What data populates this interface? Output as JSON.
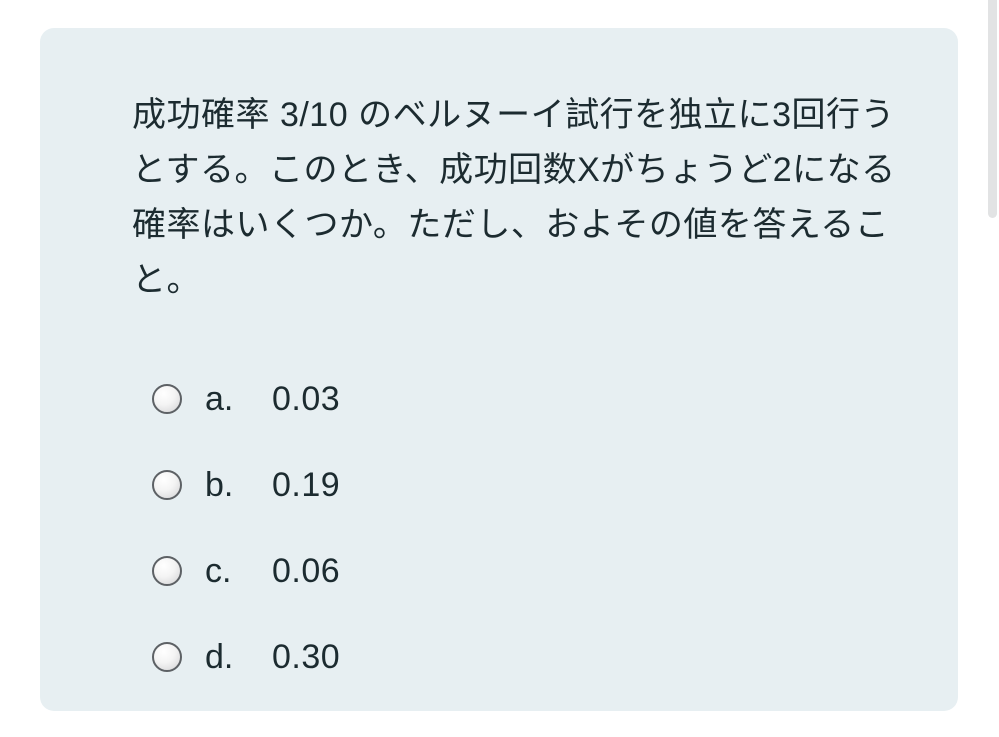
{
  "page": {
    "background_color": "#ffffff"
  },
  "card": {
    "background_color": "#e7eff2",
    "text_color": "#1c2b30"
  },
  "question": {
    "lines": [
      "成功確率 3/10 のベルヌーイ試行を独立に3回行う",
      "とする。このとき、成功回数Xがちょうど2になる",
      "確率はいくつか。ただし、およその値を答えるこ",
      "と。"
    ]
  },
  "options": [
    {
      "letter": "a.",
      "value": "0.03",
      "selected": false
    },
    {
      "letter": "b.",
      "value": "0.19",
      "selected": false
    },
    {
      "letter": "c.",
      "value": "0.06",
      "selected": false
    },
    {
      "letter": "d.",
      "value": "0.30",
      "selected": false
    }
  ],
  "scrollbar": {
    "visible": true,
    "color": "#e2e3e4"
  }
}
